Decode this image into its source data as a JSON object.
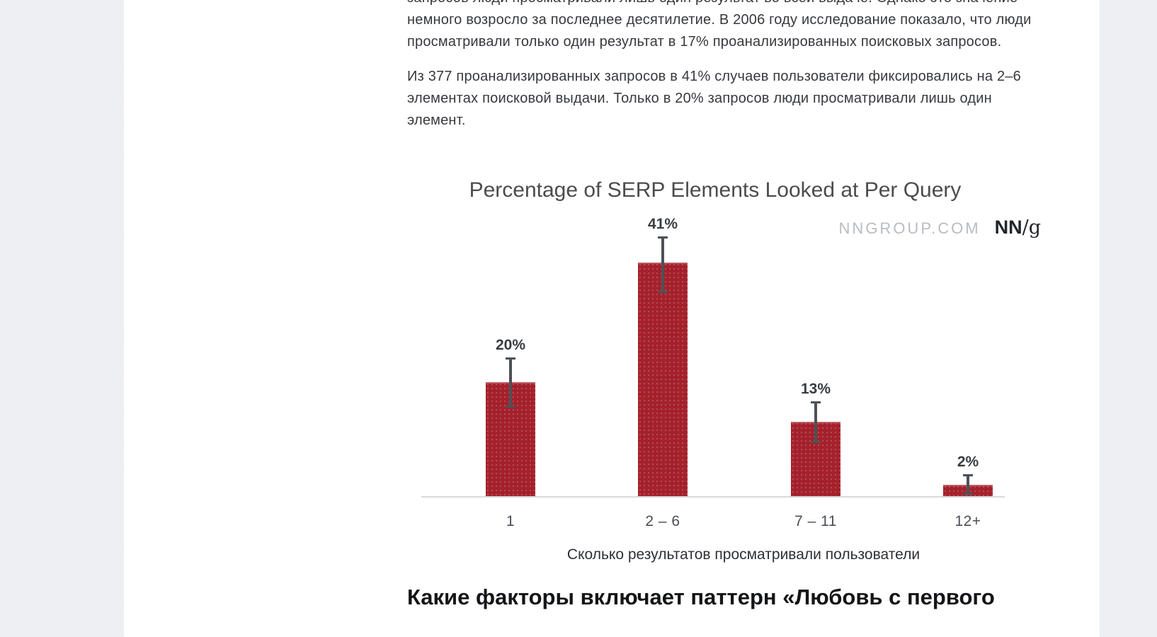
{
  "page": {
    "background_color": "#f0f1f4",
    "card_color": "#ffffff"
  },
  "article": {
    "paragraph1_lines": [
      "запросов люди просматривали лишь один результат во всей выдаче. Однако это значение",
      "немного возросло за последнее десятилетие. В 2006 году исследование показало, что люди",
      "просматривали только один результат в 17% проанализированных поисковых запросов."
    ],
    "paragraph2_lines": [
      "Из 377 проанализированных запросов в 41% случаев пользователи фиксировались на 2–6",
      "элементах поисковой выдачи. Только в 20% запросов люди просматривали лишь один",
      "элемент."
    ],
    "section_heading": "Какие факторы включает паттерн «Любовь с первого"
  },
  "chart_data": {
    "type": "bar",
    "title": "Percentage of SERP Elements Looked at Per Query",
    "source_label": "NNGROUP.COM",
    "logo_nn": "NN",
    "logo_g": "/g",
    "categories": [
      "1",
      "2 – 6",
      "7 – 11",
      "12+"
    ],
    "values": [
      20,
      41,
      13,
      2
    ],
    "value_labels": [
      "20%",
      "41%",
      "13%",
      "2%"
    ],
    "error_high": [
      24.2,
      45.5,
      16.5,
      3.7
    ],
    "error_low": [
      15.7,
      35.8,
      9.4,
      0.4
    ],
    "xlabel": "Сколько результатов просматривали пользователи",
    "ylabel": "",
    "ylim": [
      0,
      50
    ],
    "grid": false,
    "legend": false,
    "bar_color": "#a4212c",
    "error_bar_color": "#4d5156",
    "axis_line_color": "#d8dadc"
  }
}
